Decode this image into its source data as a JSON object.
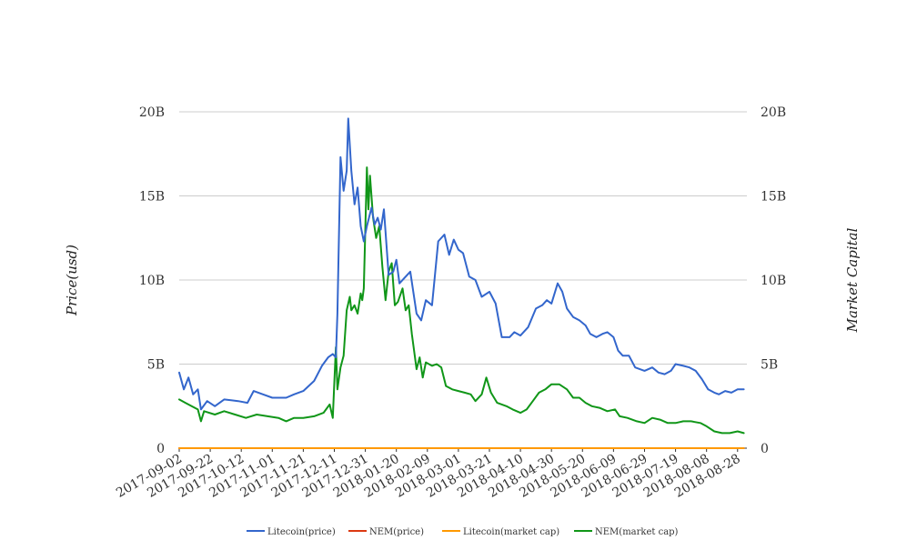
{
  "chart_data": {
    "type": "line",
    "ylabel_left": "Price(usd)",
    "ylabel_right": "Market Capital",
    "y_ticks": [
      "0",
      "5B",
      "10B",
      "15B",
      "20B"
    ],
    "y_tick_values": [
      0,
      5000000000,
      10000000000,
      15000000000,
      20000000000
    ],
    "ylim": [
      0,
      20000000000
    ],
    "x_tick_labels": [
      "2017-09-02",
      "2017-09-22",
      "2017-10-12",
      "2017-11-01",
      "2017-11-21",
      "2017-12-11",
      "2017-12-31",
      "2018-01-20",
      "2018-02-09",
      "2018-03-01",
      "2018-03-21",
      "2018-04-10",
      "2018-04-30",
      "2018-05-20",
      "2018-06-09",
      "2018-06-29",
      "2018-07-19",
      "2018-08-08",
      "2018-08-28"
    ],
    "x_range": [
      "2017-09-02",
      "2018-09-03"
    ],
    "grid": "horizontal",
    "legend_position": "bottom",
    "series": [
      {
        "name": "Litecoin(price)",
        "color": "#3366cc",
        "points": [
          [
            "2017-09-02",
            4.5
          ],
          [
            "2017-09-05",
            3.5
          ],
          [
            "2017-09-08",
            4.2
          ],
          [
            "2017-09-11",
            3.2
          ],
          [
            "2017-09-14",
            3.5
          ],
          [
            "2017-09-16",
            2.3
          ],
          [
            "2017-09-20",
            2.8
          ],
          [
            "2017-09-25",
            2.5
          ],
          [
            "2017-10-01",
            2.9
          ],
          [
            "2017-10-10",
            2.8
          ],
          [
            "2017-10-16",
            2.7
          ],
          [
            "2017-10-20",
            3.4
          ],
          [
            "2017-10-26",
            3.2
          ],
          [
            "2017-11-01",
            3.0
          ],
          [
            "2017-11-10",
            3.0
          ],
          [
            "2017-11-15",
            3.2
          ],
          [
            "2017-11-21",
            3.4
          ],
          [
            "2017-11-28",
            4.0
          ],
          [
            "2017-12-03",
            4.9
          ],
          [
            "2017-12-07",
            5.4
          ],
          [
            "2017-12-10",
            5.6
          ],
          [
            "2017-12-12",
            5.4
          ],
          [
            "2017-12-13",
            8.0
          ],
          [
            "2017-12-15",
            17.3
          ],
          [
            "2017-12-17",
            15.3
          ],
          [
            "2017-12-19",
            16.5
          ],
          [
            "2017-12-20",
            19.6
          ],
          [
            "2017-12-22",
            16.5
          ],
          [
            "2017-12-24",
            14.5
          ],
          [
            "2017-12-26",
            15.5
          ],
          [
            "2017-12-28",
            13.2
          ],
          [
            "2017-12-30",
            12.3
          ],
          [
            "2018-01-01",
            13.2
          ],
          [
            "2018-01-04",
            14.3
          ],
          [
            "2018-01-06",
            13.3
          ],
          [
            "2018-01-08",
            13.7
          ],
          [
            "2018-01-10",
            13.0
          ],
          [
            "2018-01-12",
            14.2
          ],
          [
            "2018-01-15",
            10.3
          ],
          [
            "2018-01-18",
            10.5
          ],
          [
            "2018-01-20",
            11.2
          ],
          [
            "2018-01-22",
            9.8
          ],
          [
            "2018-01-26",
            10.2
          ],
          [
            "2018-01-29",
            10.5
          ],
          [
            "2018-02-02",
            8.0
          ],
          [
            "2018-02-05",
            7.6
          ],
          [
            "2018-02-08",
            8.8
          ],
          [
            "2018-02-12",
            8.5
          ],
          [
            "2018-02-16",
            12.3
          ],
          [
            "2018-02-20",
            12.7
          ],
          [
            "2018-02-23",
            11.5
          ],
          [
            "2018-02-26",
            12.4
          ],
          [
            "2018-03-01",
            11.8
          ],
          [
            "2018-03-04",
            11.6
          ],
          [
            "2018-03-08",
            10.2
          ],
          [
            "2018-03-12",
            10.0
          ],
          [
            "2018-03-16",
            9.0
          ],
          [
            "2018-03-21",
            9.3
          ],
          [
            "2018-03-25",
            8.6
          ],
          [
            "2018-03-29",
            6.6
          ],
          [
            "2018-04-03",
            6.6
          ],
          [
            "2018-04-06",
            6.9
          ],
          [
            "2018-04-10",
            6.7
          ],
          [
            "2018-04-15",
            7.2
          ],
          [
            "2018-04-20",
            8.3
          ],
          [
            "2018-04-24",
            8.5
          ],
          [
            "2018-04-27",
            8.8
          ],
          [
            "2018-04-30",
            8.6
          ],
          [
            "2018-05-04",
            9.8
          ],
          [
            "2018-05-07",
            9.3
          ],
          [
            "2018-05-10",
            8.3
          ],
          [
            "2018-05-14",
            7.8
          ],
          [
            "2018-05-18",
            7.6
          ],
          [
            "2018-05-22",
            7.3
          ],
          [
            "2018-05-25",
            6.8
          ],
          [
            "2018-05-29",
            6.6
          ],
          [
            "2018-06-02",
            6.8
          ],
          [
            "2018-06-05",
            6.9
          ],
          [
            "2018-06-09",
            6.6
          ],
          [
            "2018-06-12",
            5.8
          ],
          [
            "2018-06-15",
            5.5
          ],
          [
            "2018-06-19",
            5.5
          ],
          [
            "2018-06-23",
            4.8
          ],
          [
            "2018-06-29",
            4.6
          ],
          [
            "2018-07-04",
            4.8
          ],
          [
            "2018-07-08",
            4.5
          ],
          [
            "2018-07-12",
            4.4
          ],
          [
            "2018-07-16",
            4.6
          ],
          [
            "2018-07-19",
            5.0
          ],
          [
            "2018-07-24",
            4.9
          ],
          [
            "2018-07-28",
            4.8
          ],
          [
            "2018-08-01",
            4.6
          ],
          [
            "2018-08-05",
            4.1
          ],
          [
            "2018-08-09",
            3.5
          ],
          [
            "2018-08-13",
            3.3
          ],
          [
            "2018-08-16",
            3.2
          ],
          [
            "2018-08-20",
            3.4
          ],
          [
            "2018-08-24",
            3.3
          ],
          [
            "2018-08-28",
            3.5
          ],
          [
            "2018-09-01",
            3.5
          ]
        ]
      },
      {
        "name": "NEM(price)",
        "color": "#dc3912",
        "points": [
          [
            "2017-09-02",
            0.0
          ],
          [
            "2018-09-01",
            0.0
          ]
        ]
      },
      {
        "name": "Litecoin(market cap)",
        "color": "#ff9900",
        "points": [
          [
            "2017-09-02",
            0.0
          ],
          [
            "2018-09-01",
            0.0
          ]
        ]
      },
      {
        "name": "NEM(market cap)",
        "color": "#109618",
        "points": [
          [
            "2017-09-02",
            2.9
          ],
          [
            "2017-09-06",
            2.7
          ],
          [
            "2017-09-10",
            2.5
          ],
          [
            "2017-09-14",
            2.3
          ],
          [
            "2017-09-16",
            1.6
          ],
          [
            "2017-09-18",
            2.2
          ],
          [
            "2017-09-25",
            2.0
          ],
          [
            "2017-10-01",
            2.2
          ],
          [
            "2017-10-08",
            2.0
          ],
          [
            "2017-10-15",
            1.8
          ],
          [
            "2017-10-22",
            2.0
          ],
          [
            "2017-10-29",
            1.9
          ],
          [
            "2017-11-05",
            1.8
          ],
          [
            "2017-11-10",
            1.6
          ],
          [
            "2017-11-15",
            1.8
          ],
          [
            "2017-11-21",
            1.8
          ],
          [
            "2017-11-28",
            1.9
          ],
          [
            "2017-12-04",
            2.1
          ],
          [
            "2017-12-08",
            2.6
          ],
          [
            "2017-12-10",
            1.8
          ],
          [
            "2017-12-12",
            6.0
          ],
          [
            "2017-12-13",
            3.5
          ],
          [
            "2017-12-15",
            4.8
          ],
          [
            "2017-12-17",
            5.5
          ],
          [
            "2017-12-19",
            8.2
          ],
          [
            "2017-12-21",
            9.0
          ],
          [
            "2017-12-22",
            8.2
          ],
          [
            "2017-12-24",
            8.5
          ],
          [
            "2017-12-26",
            8.0
          ],
          [
            "2017-12-28",
            9.2
          ],
          [
            "2017-12-29",
            8.8
          ],
          [
            "2017-12-30",
            9.5
          ],
          [
            "2018-01-01",
            16.7
          ],
          [
            "2018-01-02",
            14.2
          ],
          [
            "2018-01-03",
            16.2
          ],
          [
            "2018-01-05",
            13.7
          ],
          [
            "2018-01-07",
            12.5
          ],
          [
            "2018-01-09",
            13.2
          ],
          [
            "2018-01-11",
            10.8
          ],
          [
            "2018-01-13",
            8.8
          ],
          [
            "2018-01-15",
            10.5
          ],
          [
            "2018-01-17",
            11.0
          ],
          [
            "2018-01-19",
            8.5
          ],
          [
            "2018-01-21",
            8.7
          ],
          [
            "2018-01-24",
            9.5
          ],
          [
            "2018-01-26",
            8.2
          ],
          [
            "2018-01-28",
            8.5
          ],
          [
            "2018-01-30",
            6.8
          ],
          [
            "2018-02-02",
            4.7
          ],
          [
            "2018-02-04",
            5.4
          ],
          [
            "2018-02-06",
            4.2
          ],
          [
            "2018-02-08",
            5.1
          ],
          [
            "2018-02-12",
            4.9
          ],
          [
            "2018-02-15",
            5.0
          ],
          [
            "2018-02-18",
            4.8
          ],
          [
            "2018-02-21",
            3.7
          ],
          [
            "2018-02-25",
            3.5
          ],
          [
            "2018-03-01",
            3.4
          ],
          [
            "2018-03-05",
            3.3
          ],
          [
            "2018-03-09",
            3.2
          ],
          [
            "2018-03-12",
            2.8
          ],
          [
            "2018-03-16",
            3.2
          ],
          [
            "2018-03-19",
            4.2
          ],
          [
            "2018-03-22",
            3.3
          ],
          [
            "2018-03-26",
            2.7
          ],
          [
            "2018-04-01",
            2.5
          ],
          [
            "2018-04-05",
            2.3
          ],
          [
            "2018-04-10",
            2.1
          ],
          [
            "2018-04-14",
            2.3
          ],
          [
            "2018-04-18",
            2.8
          ],
          [
            "2018-04-22",
            3.3
          ],
          [
            "2018-04-26",
            3.5
          ],
          [
            "2018-04-30",
            3.8
          ],
          [
            "2018-05-05",
            3.8
          ],
          [
            "2018-05-10",
            3.5
          ],
          [
            "2018-05-14",
            3.0
          ],
          [
            "2018-05-18",
            3.0
          ],
          [
            "2018-05-22",
            2.7
          ],
          [
            "2018-05-26",
            2.5
          ],
          [
            "2018-05-31",
            2.4
          ],
          [
            "2018-06-05",
            2.2
          ],
          [
            "2018-06-10",
            2.3
          ],
          [
            "2018-06-13",
            1.9
          ],
          [
            "2018-06-18",
            1.8
          ],
          [
            "2018-06-24",
            1.6
          ],
          [
            "2018-06-29",
            1.5
          ],
          [
            "2018-07-04",
            1.8
          ],
          [
            "2018-07-09",
            1.7
          ],
          [
            "2018-07-14",
            1.5
          ],
          [
            "2018-07-19",
            1.5
          ],
          [
            "2018-07-24",
            1.6
          ],
          [
            "2018-07-29",
            1.6
          ],
          [
            "2018-08-04",
            1.5
          ],
          [
            "2018-08-08",
            1.3
          ],
          [
            "2018-08-13",
            1.0
          ],
          [
            "2018-08-18",
            0.9
          ],
          [
            "2018-08-23",
            0.9
          ],
          [
            "2018-08-28",
            1.0
          ],
          [
            "2018-09-01",
            0.9
          ]
        ]
      }
    ]
  }
}
